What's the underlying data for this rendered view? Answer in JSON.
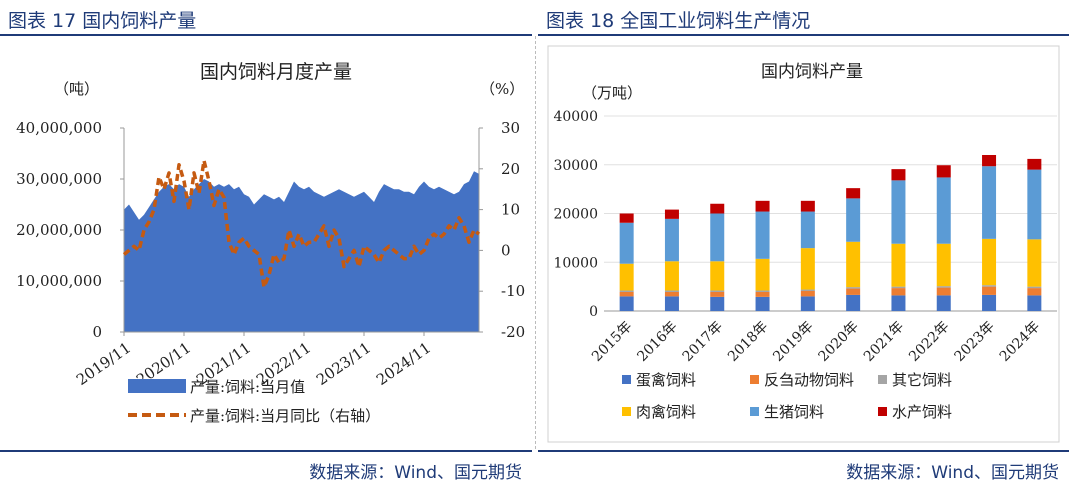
{
  "fig17": {
    "title": "图表 17  国内饲料产量",
    "source": "数据来源：Wind、国元期货"
  },
  "fig18": {
    "title": "图表 18  全国工业饲料生产情况",
    "source": "数据来源：Wind、国元期货"
  },
  "chart_data": [
    {
      "type": "area",
      "title": "国内饲料月度产量",
      "left_unit": "（吨）",
      "right_unit": "（%）",
      "y_left": {
        "min": 0,
        "max": 40000000,
        "ticks": [
          "0",
          "10,000,000",
          "20,000,000",
          "30,000,000",
          "40,000,000"
        ]
      },
      "y_right": {
        "min": -20,
        "max": 30,
        "ticks": [
          "-20",
          "-10",
          "0",
          "10",
          "20",
          "30"
        ]
      },
      "x_tick_labels": [
        "2019/11",
        "2020/11",
        "2021/11",
        "2022/11",
        "2023/11",
        "2024/11"
      ],
      "legend": [
        "产量:饲料:当月值",
        "产量:饲料:当月同比（右轴）"
      ],
      "colors": {
        "area": "#4472c4",
        "line": "#c55a11"
      },
      "series": [
        {
          "name": "产量:饲料:当月值",
          "axis": "left",
          "values": [
            24000000,
            25000000,
            23500000,
            22000000,
            23000000,
            24500000,
            26000000,
            27500000,
            28500000,
            29000000,
            28000000,
            29000000,
            28500000,
            26500000,
            28000000,
            29000000,
            30000000,
            29500000,
            28500000,
            29000000,
            28500000,
            29000000,
            28000000,
            28500000,
            27000000,
            26500000,
            25000000,
            26000000,
            27000000,
            26500000,
            26000000,
            26500000,
            25500000,
            27500000,
            29500000,
            28500000,
            28000000,
            28500000,
            27500000,
            27000000,
            26500000,
            27000000,
            27500000,
            28000000,
            27500000,
            27000000,
            26500000,
            27000000,
            27500000,
            26500000,
            25500000,
            27500000,
            29000000,
            28500000,
            28000000,
            28000000,
            27500000,
            27500000,
            27000000,
            28500000,
            29500000,
            28500000,
            28000000,
            28500000,
            28000000,
            27500000,
            27000000,
            27500000,
            29000000,
            29500000,
            31500000,
            31000000
          ]
        },
        {
          "name": "产量:饲料:当月同比（右轴）",
          "axis": "right",
          "values": [
            -1,
            0,
            1,
            0,
            5,
            7,
            10,
            18,
            15,
            19,
            12,
            21,
            17,
            10,
            19,
            14,
            22,
            17,
            11,
            15,
            13,
            2,
            -1,
            2,
            3,
            1,
            0,
            -1,
            -9,
            -6,
            -1,
            -3,
            -2,
            5,
            1,
            4,
            1,
            2,
            2,
            4,
            6,
            1,
            5,
            3,
            -4,
            -2,
            0,
            -4,
            1,
            0,
            -1,
            -3,
            0,
            1,
            0,
            -1,
            -2,
            -2,
            1,
            -1,
            0,
            3,
            4,
            3,
            4,
            6,
            5,
            8,
            6,
            2,
            5,
            4
          ]
        }
      ]
    },
    {
      "type": "bar",
      "title": "国内饲料产量",
      "y_unit": "（万吨）",
      "ylim": [
        0,
        40000
      ],
      "y_ticks": [
        "0",
        "10000",
        "20000",
        "30000",
        "40000"
      ],
      "categories": [
        "2015年",
        "2016年",
        "2017年",
        "2018年",
        "2019年",
        "2020年",
        "2021年",
        "2022年",
        "2023年",
        "2024年"
      ],
      "series": [
        {
          "name": "蛋禽饲料",
          "color": "#4472c4",
          "values": [
            3000,
            3000,
            2900,
            2900,
            3000,
            3300,
            3200,
            3200,
            3300,
            3200
          ]
        },
        {
          "name": "反刍动物饲料",
          "color": "#ed7d31",
          "values": [
            900,
            900,
            1000,
            1000,
            1100,
            1300,
            1500,
            1600,
            1700,
            1500
          ]
        },
        {
          "name": "其它饲料",
          "color": "#a5a5a5",
          "values": [
            300,
            300,
            300,
            300,
            300,
            300,
            300,
            300,
            300,
            300
          ]
        },
        {
          "name": "肉禽饲料",
          "color": "#ffc000",
          "values": [
            5500,
            6000,
            6000,
            6500,
            8500,
            9300,
            8800,
            8700,
            9500,
            9700
          ]
        },
        {
          "name": "生猪饲料",
          "color": "#5b9bd5",
          "values": [
            8400,
            8700,
            9800,
            9700,
            7500,
            8900,
            13000,
            13600,
            14900,
            14300
          ]
        },
        {
          "name": "水产饲料",
          "color": "#c00000",
          "values": [
            1900,
            1900,
            2000,
            2200,
            2200,
            2100,
            2300,
            2500,
            2300,
            2200
          ]
        }
      ]
    }
  ]
}
